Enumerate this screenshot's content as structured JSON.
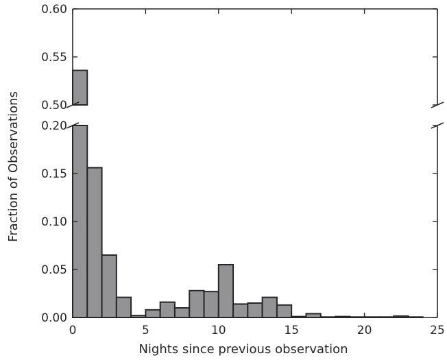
{
  "chart_data": {
    "type": "bar",
    "title": "",
    "xlabel": "Nights since previous observation",
    "ylabel": "Fraction of Observations",
    "xlim": [
      0,
      25
    ],
    "broken_y_axis": true,
    "upper_ylim": [
      0.5,
      0.6
    ],
    "lower_ylim": [
      0.0,
      0.2
    ],
    "bin_width": 1,
    "bar_color": "#939396",
    "edge_color": "#262626",
    "x_ticks": [
      "0",
      "5",
      "10",
      "15",
      "20",
      "25"
    ],
    "upper_y_ticks": [
      "0.50",
      "0.55",
      "0.60"
    ],
    "lower_y_ticks": [
      "0.00",
      "0.05",
      "0.10",
      "0.15",
      "0.20"
    ],
    "bins": [
      {
        "x": 0,
        "value": 0.536
      },
      {
        "x": 1,
        "value": 0.156
      },
      {
        "x": 2,
        "value": 0.065
      },
      {
        "x": 3,
        "value": 0.021
      },
      {
        "x": 4,
        "value": 0.002
      },
      {
        "x": 5,
        "value": 0.008
      },
      {
        "x": 6,
        "value": 0.016
      },
      {
        "x": 7,
        "value": 0.01
      },
      {
        "x": 8,
        "value": 0.028
      },
      {
        "x": 9,
        "value": 0.027
      },
      {
        "x": 10,
        "value": 0.055
      },
      {
        "x": 11,
        "value": 0.014
      },
      {
        "x": 12,
        "value": 0.015
      },
      {
        "x": 13,
        "value": 0.021
      },
      {
        "x": 14,
        "value": 0.013
      },
      {
        "x": 15,
        "value": 0.001
      },
      {
        "x": 16,
        "value": 0.004
      },
      {
        "x": 17,
        "value": 0.0005
      },
      {
        "x": 18,
        "value": 0.001
      },
      {
        "x": 19,
        "value": 0.0005
      },
      {
        "x": 20,
        "value": 0.0005
      },
      {
        "x": 21,
        "value": 0.0005
      },
      {
        "x": 22,
        "value": 0.0015
      },
      {
        "x": 23,
        "value": 0.0005
      },
      {
        "x": 24,
        "value": 0
      }
    ]
  }
}
